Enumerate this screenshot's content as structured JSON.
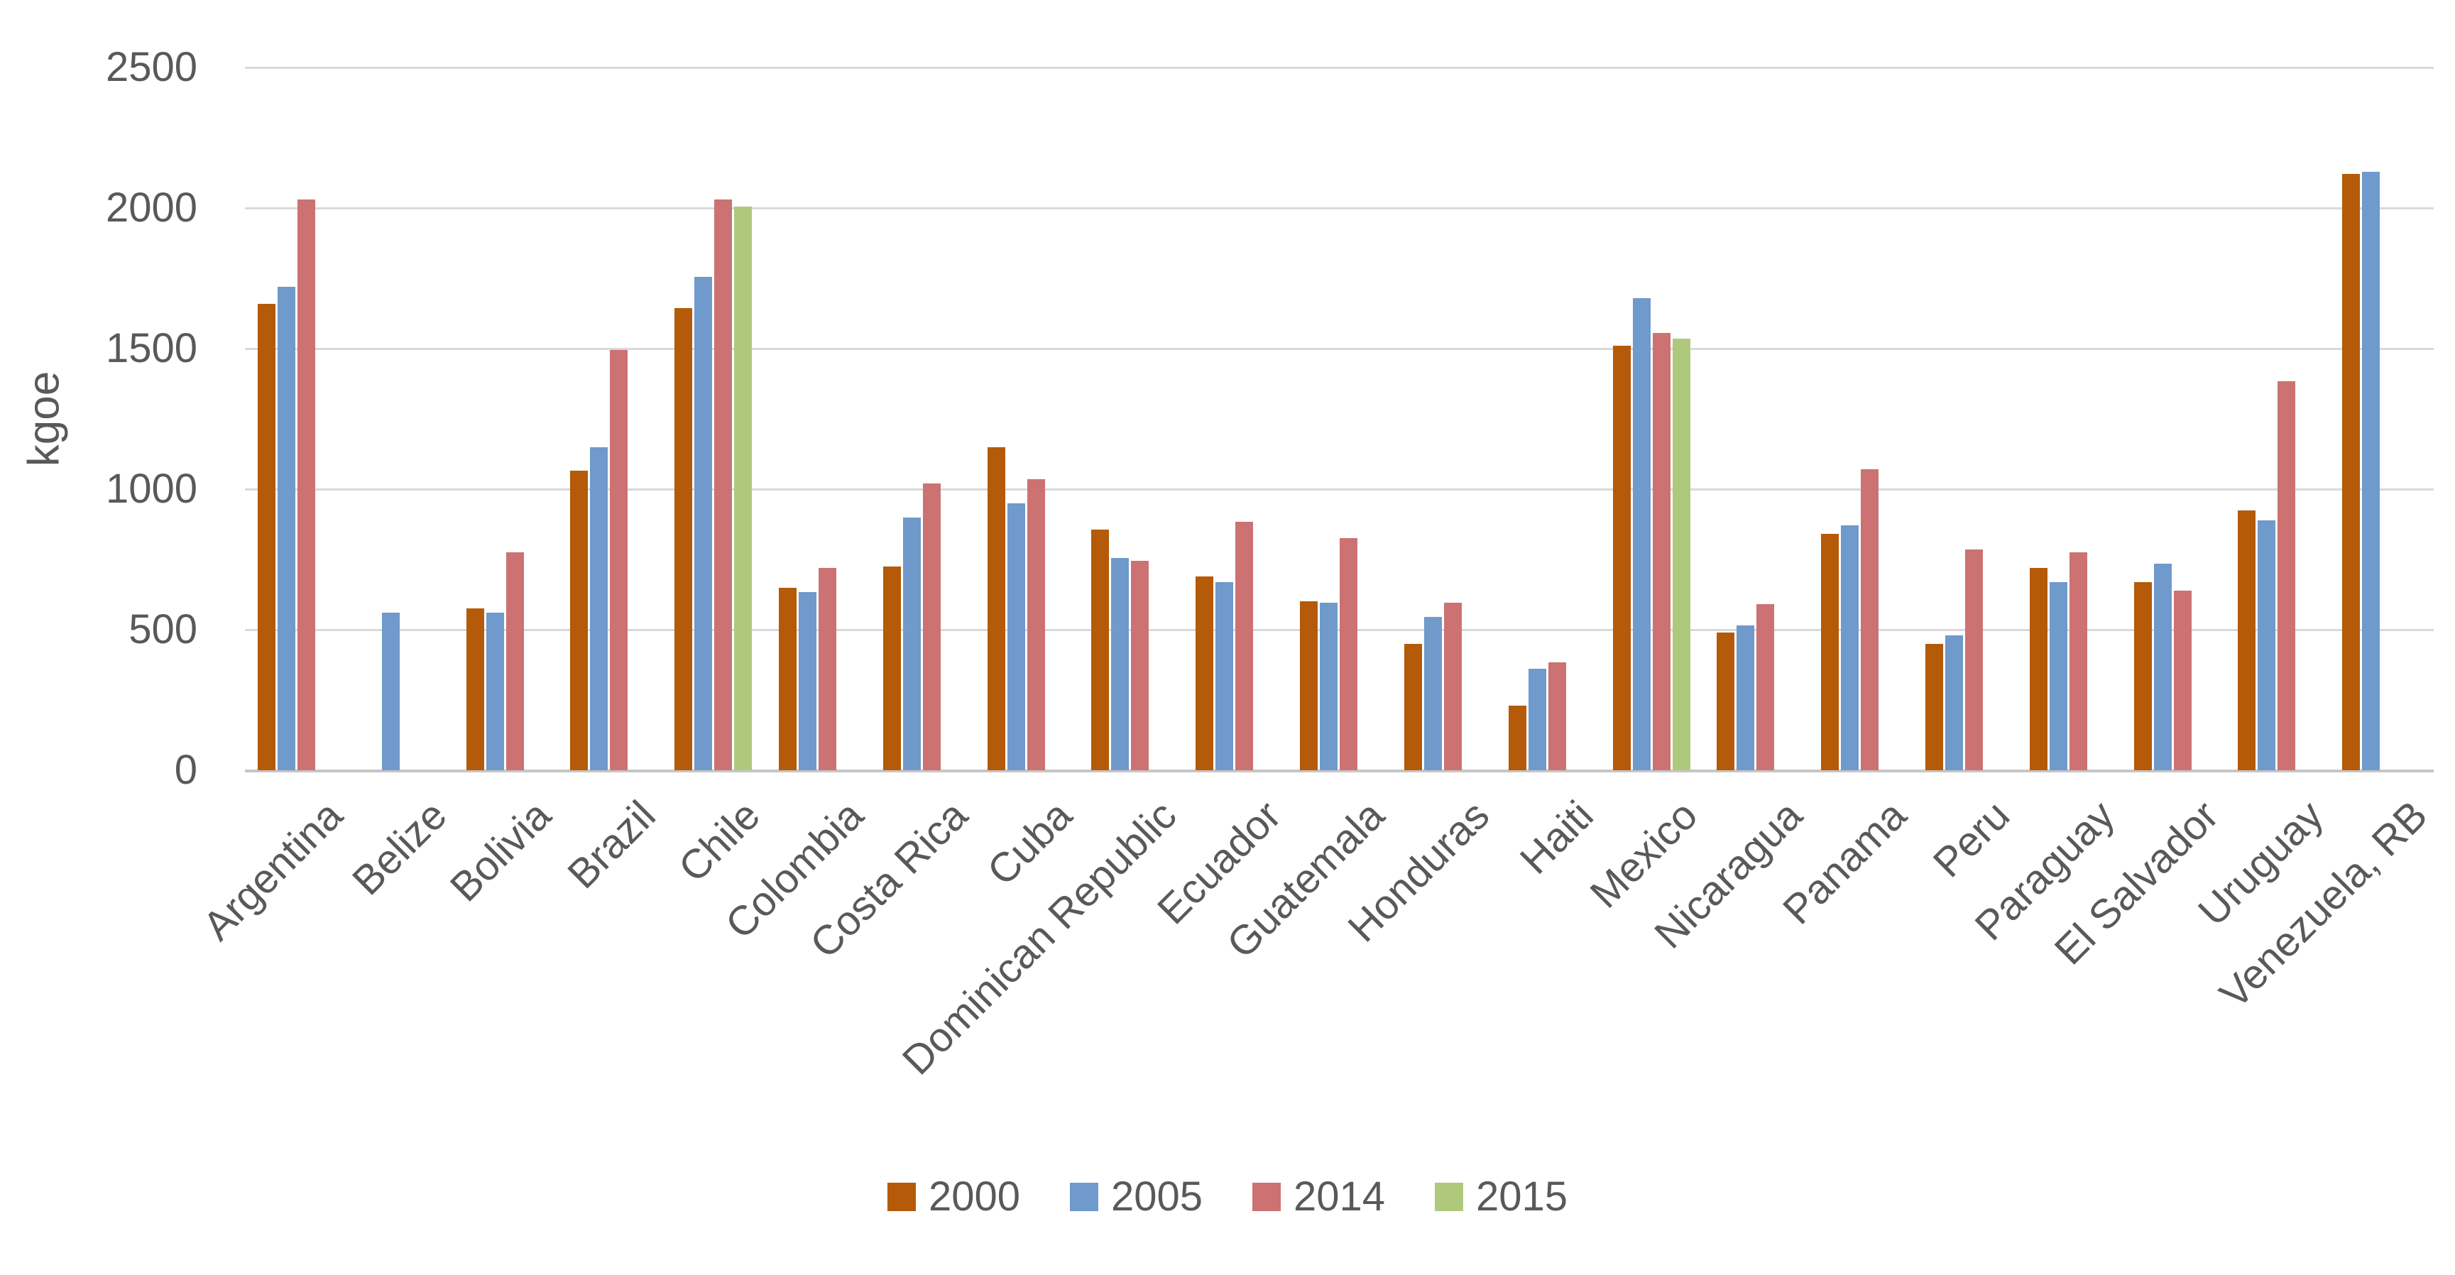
{
  "chart_data": {
    "type": "bar",
    "title": "",
    "ylabel": "kgoe",
    "xlabel": "",
    "ylim": [
      0,
      2500
    ],
    "yticks": [
      0,
      500,
      1000,
      1500,
      2000,
      2500
    ],
    "grid": true,
    "legend_position": "bottom",
    "categories": [
      "Argentina",
      "Belize",
      "Bolivia",
      "Brazil",
      "Chile",
      "Colombia",
      "Costa Rica",
      "Cuba",
      "Dominican Republic",
      "Ecuador",
      "Guatemala",
      "Honduras",
      "Haiti",
      "Mexico",
      "Nicaragua",
      "Panama",
      "Peru",
      "Paraguay",
      "El Salvador",
      "Uruguay",
      "Venezuela, RB"
    ],
    "series": [
      {
        "name": "2000",
        "color": "#B45A08",
        "values": [
          1660,
          null,
          575,
          1065,
          1645,
          650,
          725,
          1150,
          855,
          690,
          600,
          450,
          230,
          1510,
          490,
          840,
          450,
          720,
          670,
          925,
          2120
        ]
      },
      {
        "name": "2005",
        "color": "#7099CC",
        "values": [
          1720,
          560,
          560,
          1150,
          1755,
          635,
          900,
          950,
          755,
          670,
          595,
          545,
          360,
          1680,
          515,
          870,
          480,
          670,
          735,
          890,
          2130
        ]
      },
      {
        "name": "2014",
        "color": "#CC7272",
        "values": [
          2030,
          null,
          775,
          1495,
          2030,
          720,
          1020,
          1035,
          745,
          885,
          825,
          595,
          385,
          1555,
          590,
          1070,
          785,
          775,
          640,
          1385,
          null
        ]
      },
      {
        "name": "2015",
        "color": "#AFC97C",
        "values": [
          null,
          null,
          null,
          null,
          2005,
          null,
          null,
          null,
          null,
          null,
          null,
          null,
          null,
          1535,
          null,
          null,
          null,
          null,
          null,
          null,
          null
        ]
      }
    ]
  },
  "colors": {
    "gridline": "#D9D9D9",
    "axis_line": "#C6C6C6",
    "text": "#595959"
  }
}
